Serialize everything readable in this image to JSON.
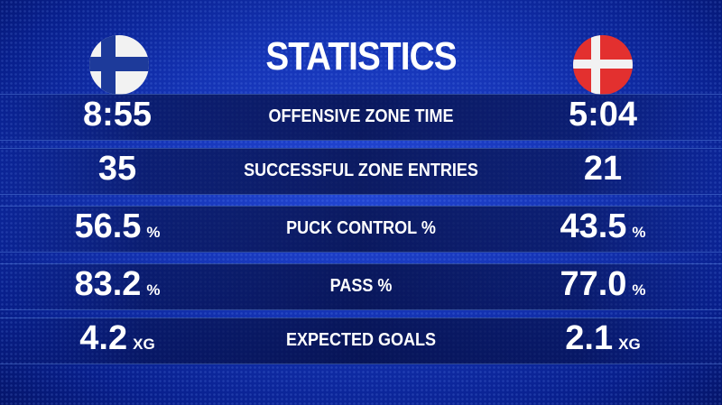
{
  "header": {
    "title": "STATISTICS"
  },
  "rows": [
    {
      "label": "OFFENSIVE ZONE TIME",
      "left": "8:55",
      "right": "5:04"
    },
    {
      "label": "SUCCESSFUL ZONE ENTRIES",
      "left": "35",
      "right": "21"
    },
    {
      "label": "PUCK CONTROL %",
      "left": "56.5",
      "left_unit": "%",
      "right": "43.5",
      "right_unit": "%"
    },
    {
      "label": "PASS %",
      "left": "83.2",
      "left_unit": "%",
      "right": "77.0",
      "right_unit": "%"
    },
    {
      "label": "EXPECTED GOALS",
      "left": "4.2",
      "left_unit": "XG",
      "right": "2.1",
      "right_unit": "XG"
    }
  ]
}
